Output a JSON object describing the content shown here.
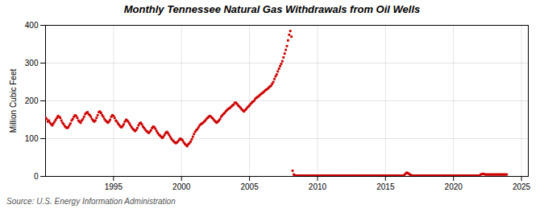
{
  "chart_data": {
    "type": "scatter",
    "title": "Monthly Tennessee Natural Gas Withdrawals from Oil Wells",
    "ylabel": "Million Cubic Feet",
    "source": "Source: U.S. Energy Information Administration",
    "color": "#cc0000",
    "marker": "square",
    "grid": true,
    "xlim": [
      1990.0,
      2025.5
    ],
    "ylim": [
      0,
      400
    ],
    "xticks": [
      1995,
      2000,
      2005,
      2010,
      2015,
      2020,
      2025
    ],
    "yticks": [
      0,
      100,
      200,
      300,
      400
    ],
    "x": [
      1990.0,
      1990.083,
      1990.167,
      1990.25,
      1990.333,
      1990.417,
      1990.5,
      1990.583,
      1990.667,
      1990.75,
      1990.833,
      1990.917,
      1991.0,
      1991.083,
      1991.167,
      1991.25,
      1991.333,
      1991.417,
      1991.5,
      1991.583,
      1991.667,
      1991.75,
      1991.833,
      1991.917,
      1992.0,
      1992.083,
      1992.167,
      1992.25,
      1992.333,
      1992.417,
      1992.5,
      1992.583,
      1992.667,
      1992.75,
      1992.833,
      1992.917,
      1993.0,
      1993.083,
      1993.167,
      1993.25,
      1993.333,
      1993.417,
      1993.5,
      1993.583,
      1993.667,
      1993.75,
      1993.833,
      1993.917,
      1994.0,
      1994.083,
      1994.167,
      1994.25,
      1994.333,
      1994.417,
      1994.5,
      1994.583,
      1994.667,
      1994.75,
      1994.833,
      1994.917,
      1995.0,
      1995.083,
      1995.167,
      1995.25,
      1995.333,
      1995.417,
      1995.5,
      1995.583,
      1995.667,
      1995.75,
      1995.833,
      1995.917,
      1996.0,
      1996.083,
      1996.167,
      1996.25,
      1996.333,
      1996.417,
      1996.5,
      1996.583,
      1996.667,
      1996.75,
      1996.833,
      1996.917,
      1997.0,
      1997.083,
      1997.167,
      1997.25,
      1997.333,
      1997.417,
      1997.5,
      1997.583,
      1997.667,
      1997.75,
      1997.833,
      1997.917,
      1998.0,
      1998.083,
      1998.167,
      1998.25,
      1998.333,
      1998.417,
      1998.5,
      1998.583,
      1998.667,
      1998.75,
      1998.833,
      1998.917,
      1999.0,
      1999.083,
      1999.167,
      1999.25,
      1999.333,
      1999.417,
      1999.5,
      1999.583,
      1999.667,
      1999.75,
      1999.833,
      1999.917,
      2000.0,
      2000.083,
      2000.167,
      2000.25,
      2000.333,
      2000.417,
      2000.5,
      2000.583,
      2000.667,
      2000.75,
      2000.833,
      2000.917,
      2001.0,
      2001.083,
      2001.167,
      2001.25,
      2001.333,
      2001.417,
      2001.5,
      2001.583,
      2001.667,
      2001.75,
      2001.833,
      2001.917,
      2002.0,
      2002.083,
      2002.167,
      2002.25,
      2002.333,
      2002.417,
      2002.5,
      2002.583,
      2002.667,
      2002.75,
      2002.833,
      2002.917,
      2003.0,
      2003.083,
      2003.167,
      2003.25,
      2003.333,
      2003.417,
      2003.5,
      2003.583,
      2003.667,
      2003.75,
      2003.833,
      2003.917,
      2004.0,
      2004.083,
      2004.167,
      2004.25,
      2004.333,
      2004.417,
      2004.5,
      2004.583,
      2004.667,
      2004.75,
      2004.833,
      2004.917,
      2005.0,
      2005.083,
      2005.167,
      2005.25,
      2005.333,
      2005.417,
      2005.5,
      2005.583,
      2005.667,
      2005.75,
      2005.833,
      2005.917,
      2006.0,
      2006.083,
      2006.167,
      2006.25,
      2006.333,
      2006.417,
      2006.5,
      2006.583,
      2006.667,
      2006.75,
      2006.833,
      2006.917,
      2007.0,
      2007.083,
      2007.167,
      2007.25,
      2007.333,
      2007.417,
      2007.5,
      2007.583,
      2007.667,
      2007.75,
      2007.833,
      2007.917,
      2008.0,
      2008.083,
      2008.167,
      2008.25,
      2008.333,
      2008.417,
      2008.5,
      2008.583,
      2008.667,
      2008.75,
      2008.833,
      2008.917,
      2009.0,
      2009.083,
      2009.167,
      2009.25,
      2009.333,
      2009.417,
      2009.5,
      2009.583,
      2009.667,
      2009.75,
      2009.833,
      2009.917,
      2010.0,
      2010.083,
      2010.167,
      2010.25,
      2010.333,
      2010.417,
      2010.5,
      2010.583,
      2010.667,
      2010.75,
      2010.833,
      2010.917,
      2011.0,
      2011.083,
      2011.167,
      2011.25,
      2011.333,
      2011.417,
      2011.5,
      2011.583,
      2011.667,
      2011.75,
      2011.833,
      2011.917,
      2012.0,
      2012.083,
      2012.167,
      2012.25,
      2012.333,
      2012.417,
      2012.5,
      2012.583,
      2012.667,
      2012.75,
      2012.833,
      2012.917,
      2013.0,
      2013.083,
      2013.167,
      2013.25,
      2013.333,
      2013.417,
      2013.5,
      2013.583,
      2013.667,
      2013.75,
      2013.833,
      2013.917,
      2014.0,
      2014.083,
      2014.167,
      2014.25,
      2014.333,
      2014.417,
      2014.5,
      2014.583,
      2014.667,
      2014.75,
      2014.833,
      2014.917,
      2015.0,
      2015.083,
      2015.167,
      2015.25,
      2015.333,
      2015.417,
      2015.5,
      2015.583,
      2015.667,
      2015.75,
      2015.833,
      2015.917,
      2016.0,
      2016.083,
      2016.167,
      2016.25,
      2016.333,
      2016.417,
      2016.5,
      2016.583,
      2016.667,
      2016.75,
      2016.833,
      2016.917,
      2017.0,
      2017.083,
      2017.167,
      2017.25,
      2017.333,
      2017.417,
      2017.5,
      2017.583,
      2017.667,
      2017.75,
      2017.833,
      2017.917,
      2018.0,
      2018.083,
      2018.167,
      2018.25,
      2018.333,
      2018.417,
      2018.5,
      2018.583,
      2018.667,
      2018.75,
      2018.833,
      2018.917,
      2019.0,
      2019.083,
      2019.167,
      2019.25,
      2019.333,
      2019.417,
      2019.5,
      2019.583,
      2019.667,
      2019.75,
      2019.833,
      2019.917,
      2020.0,
      2020.083,
      2020.167,
      2020.25,
      2020.333,
      2020.417,
      2020.5,
      2020.583,
      2020.667,
      2020.75,
      2020.833,
      2020.917,
      2021.0,
      2021.083,
      2021.167,
      2021.25,
      2021.333,
      2021.417,
      2021.5,
      2021.583,
      2021.667,
      2021.75,
      2021.833,
      2021.917,
      2022.0,
      2022.083,
      2022.167,
      2022.25,
      2022.333,
      2022.417,
      2022.5,
      2022.583,
      2022.667,
      2022.75,
      2022.833,
      2022.917,
      2023.0,
      2023.083,
      2023.167,
      2023.25,
      2023.333,
      2023.417,
      2023.5,
      2023.583,
      2023.667,
      2023.75,
      2023.833,
      2023.917
    ],
    "values": [
      155,
      152,
      145,
      148,
      142,
      138,
      135,
      140,
      145,
      150,
      155,
      160,
      158,
      155,
      148,
      142,
      138,
      133,
      130,
      128,
      130,
      135,
      140,
      148,
      152,
      158,
      162,
      160,
      155,
      148,
      145,
      142,
      148,
      152,
      158,
      165,
      168,
      170,
      165,
      162,
      158,
      152,
      148,
      145,
      148,
      155,
      162,
      170,
      172,
      168,
      162,
      158,
      152,
      148,
      145,
      142,
      145,
      150,
      158,
      162,
      160,
      155,
      148,
      145,
      140,
      136,
      132,
      130,
      133,
      138,
      145,
      150,
      148,
      145,
      140,
      135,
      130,
      126,
      123,
      120,
      123,
      128,
      135,
      140,
      142,
      138,
      132,
      128,
      124,
      120,
      118,
      115,
      118,
      122,
      128,
      132,
      130,
      126,
      120,
      115,
      111,
      108,
      105,
      102,
      105,
      110,
      115,
      118,
      115,
      110,
      105,
      100,
      96,
      93,
      90,
      88,
      90,
      93,
      97,
      100,
      98,
      95,
      90,
      86,
      83,
      80,
      85,
      88,
      92,
      98,
      105,
      112,
      118,
      122,
      125,
      130,
      135,
      138,
      140,
      142,
      145,
      148,
      152,
      155,
      158,
      160,
      158,
      155,
      152,
      148,
      145,
      142,
      145,
      148,
      152,
      158,
      162,
      165,
      168,
      172,
      175,
      178,
      180,
      182,
      185,
      188,
      190,
      195,
      195,
      192,
      188,
      185,
      182,
      178,
      175,
      172,
      175,
      178,
      182,
      185,
      188,
      192,
      195,
      198,
      200,
      205,
      208,
      210,
      212,
      215,
      218,
      220,
      222,
      225,
      228,
      230,
      232,
      235,
      238,
      240,
      245,
      250,
      258,
      265,
      270,
      278,
      285,
      292,
      298,
      305,
      315,
      325,
      335,
      345,
      360,
      375,
      385,
      370,
      15,
      5,
      3,
      2,
      2,
      2,
      2,
      2,
      2,
      2,
      2,
      2,
      2,
      2,
      2,
      2,
      2,
      2,
      2,
      2,
      2,
      2,
      2,
      2,
      2,
      2,
      2,
      2,
      2,
      2,
      2,
      2,
      2,
      2,
      2,
      2,
      2,
      2,
      2,
      2,
      2,
      2,
      2,
      2,
      2,
      2,
      2,
      2,
      2,
      2,
      2,
      2,
      2,
      2,
      2,
      2,
      2,
      2,
      2,
      2,
      2,
      2,
      2,
      2,
      2,
      2,
      2,
      2,
      2,
      2,
      2,
      2,
      2,
      2,
      2,
      2,
      2,
      2,
      2,
      2,
      2,
      2,
      2,
      2,
      2,
      2,
      2,
      2,
      2,
      2,
      2,
      2,
      2,
      2,
      2,
      2,
      2,
      2,
      2,
      5,
      8,
      10,
      8,
      6,
      4,
      3,
      2,
      2,
      2,
      2,
      2,
      2,
      2,
      2,
      2,
      2,
      2,
      2,
      2,
      2,
      2,
      2,
      2,
      2,
      2,
      2,
      2,
      2,
      2,
      2,
      2,
      2,
      2,
      2,
      2,
      2,
      2,
      2,
      2,
      2,
      2,
      2,
      2,
      2,
      2,
      2,
      2,
      2,
      2,
      2,
      2,
      2,
      2,
      2,
      2,
      2,
      2,
      2,
      2,
      2,
      2,
      2,
      2,
      2,
      2,
      2,
      5,
      6,
      7,
      6,
      5,
      5,
      5,
      5,
      5,
      5,
      5,
      5,
      5,
      5,
      5,
      5,
      5,
      5,
      5,
      5,
      5,
      5,
      5,
      5
    ]
  }
}
